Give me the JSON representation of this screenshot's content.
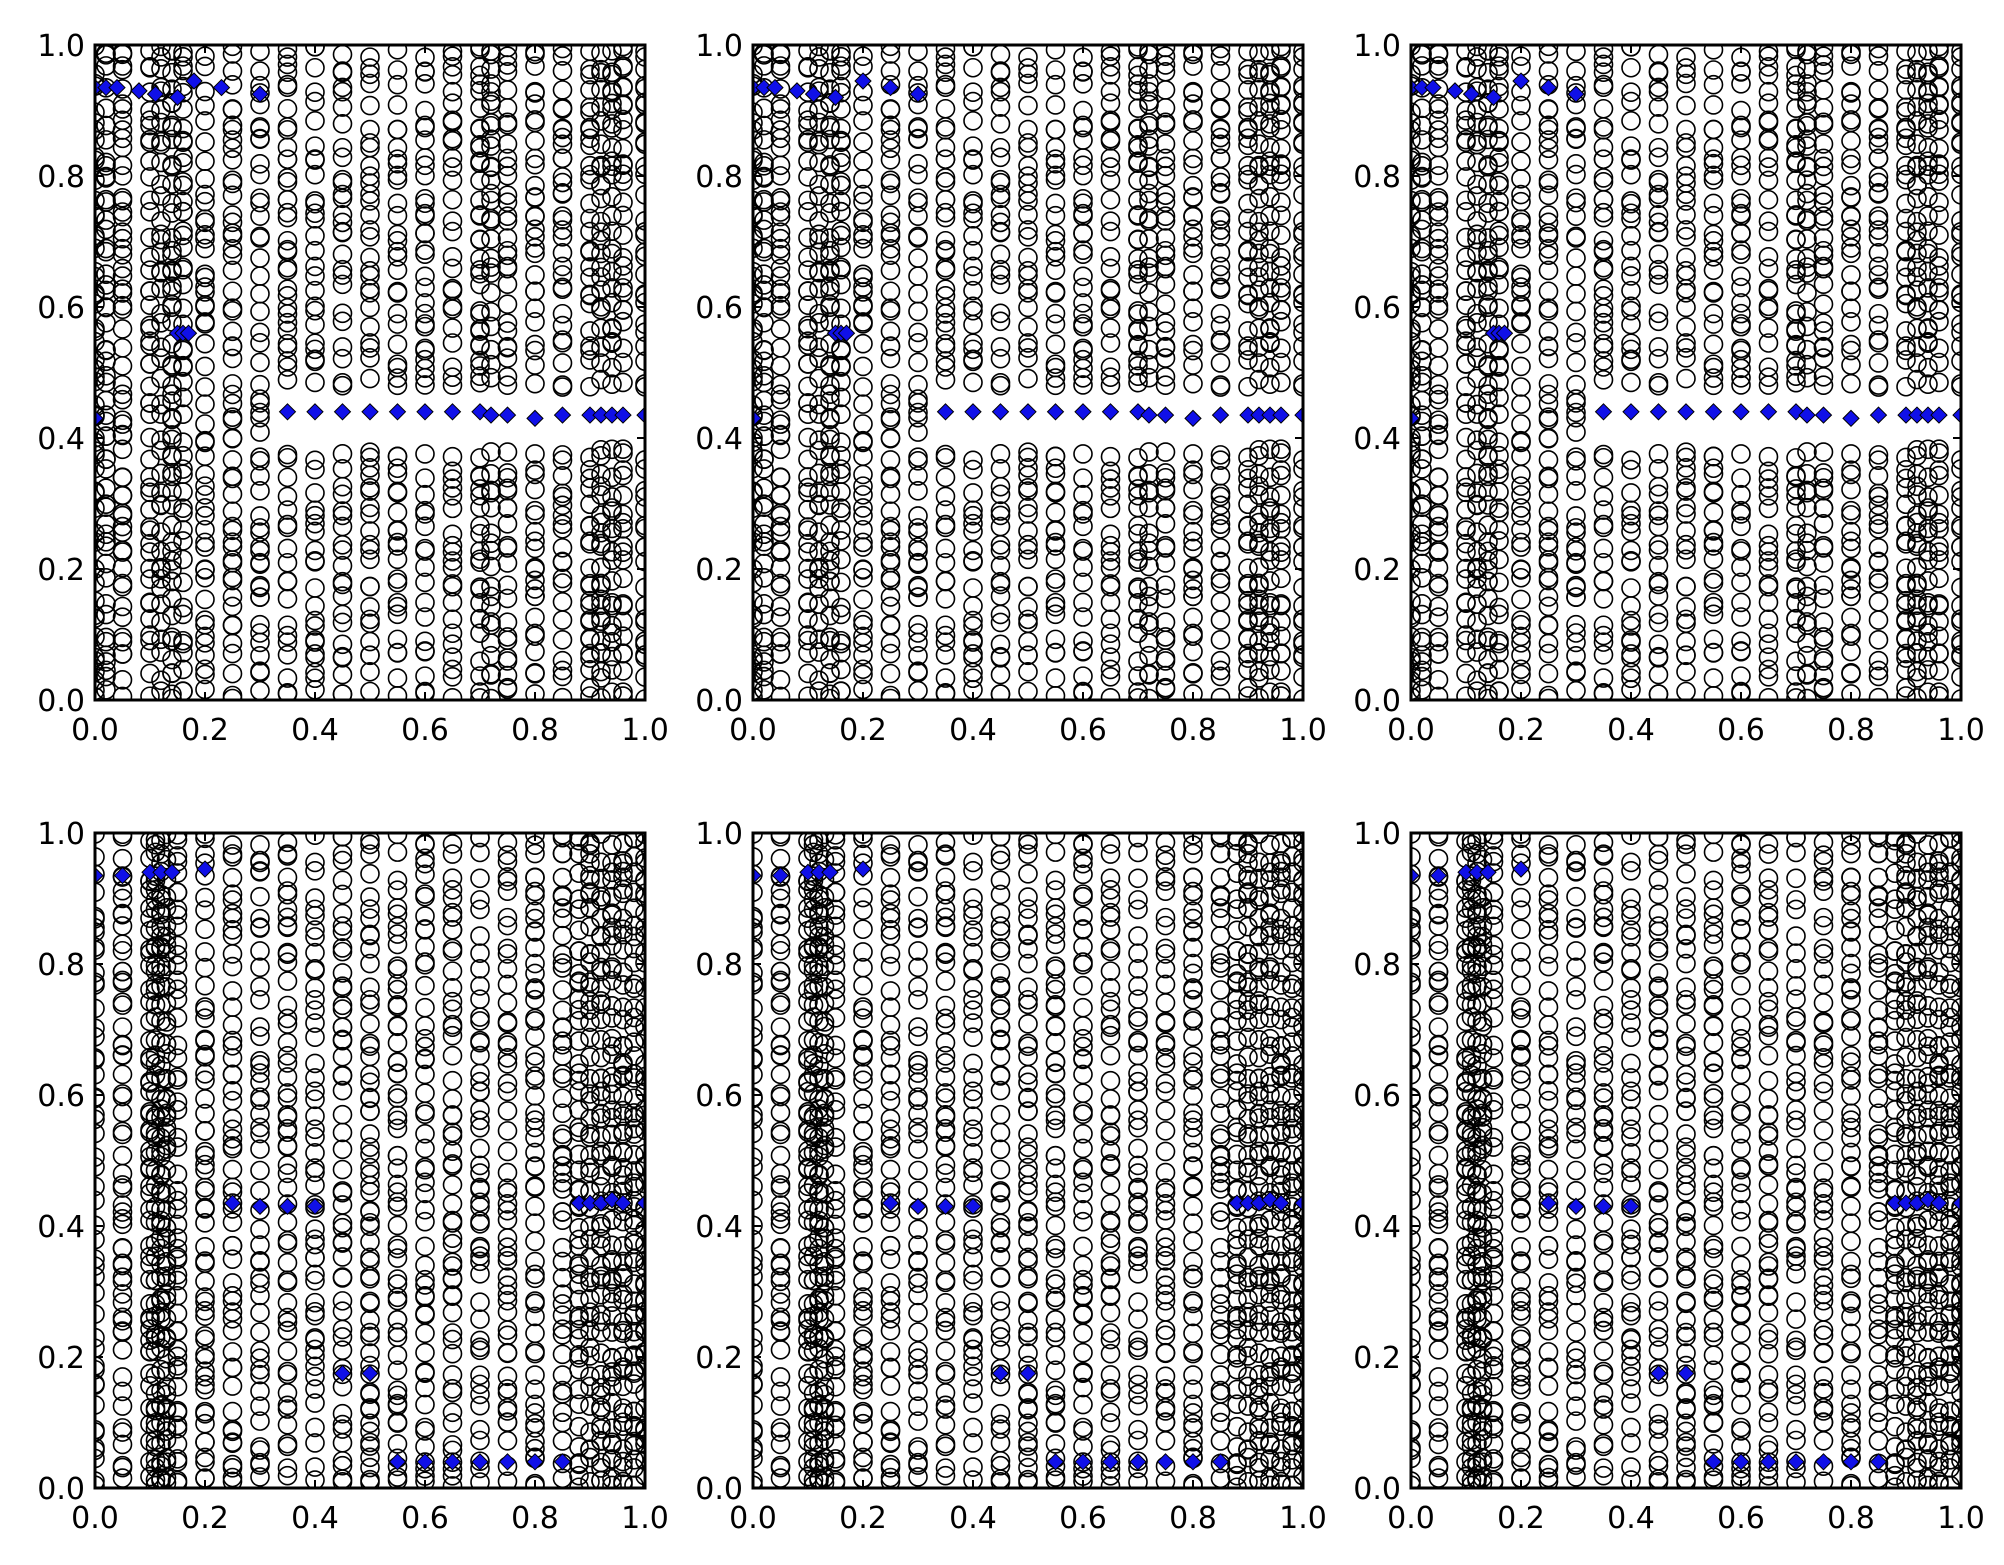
{
  "figure": {
    "panel_count": 6,
    "grid": "2x3"
  },
  "chart_data": [
    {
      "type": "scatter",
      "panel": "top-left",
      "title": "",
      "xlabel": "",
      "ylabel": "",
      "xlim": [
        0,
        1
      ],
      "ylim": [
        0,
        1
      ],
      "xticks": [
        "0.0",
        "0.2",
        "0.4",
        "0.6",
        "0.8",
        "1.0"
      ],
      "yticks": [
        "0.0",
        "0.2",
        "0.4",
        "0.6",
        "0.8",
        "1.0"
      ],
      "grid": false,
      "series": [
        {
          "marker": "open-circle",
          "color": "#000000",
          "description_x_columns": [
            0.0,
            0.02,
            0.05,
            0.1,
            0.12,
            0.14,
            0.16,
            0.2,
            0.25,
            0.3,
            0.35,
            0.4,
            0.45,
            0.5,
            0.55,
            0.6,
            0.65,
            0.7,
            0.72,
            0.75,
            0.8,
            0.85,
            0.9,
            0.92,
            0.94,
            0.96,
            1.0
          ],
          "description_y_rows": [
            0.01,
            0.08,
            0.1,
            0.12,
            0.16,
            0.2,
            0.22,
            0.24,
            0.28,
            0.3,
            0.32,
            0.35,
            0.38,
            0.45,
            0.48,
            0.5,
            0.52,
            0.6,
            0.62,
            0.64,
            0.68,
            0.7,
            0.72,
            0.76,
            0.8,
            0.82,
            0.86,
            0.88,
            0.95,
            0.99
          ]
        },
        {
          "marker": "diamond",
          "color": "#1010e8",
          "x": [
            0.0,
            0.02,
            0.04,
            0.08,
            0.11,
            0.15,
            0.18,
            0.23,
            0.3,
            0.15,
            0.16,
            0.17,
            0.0,
            0.35,
            0.4,
            0.45,
            0.5,
            0.55,
            0.6,
            0.65,
            0.7,
            0.72,
            0.75,
            0.8,
            0.85,
            0.9,
            0.92,
            0.94,
            0.96,
            1.0
          ],
          "y": [
            0.935,
            0.935,
            0.935,
            0.93,
            0.925,
            0.92,
            0.945,
            0.935,
            0.925,
            0.56,
            0.56,
            0.56,
            0.43,
            0.44,
            0.44,
            0.44,
            0.44,
            0.44,
            0.44,
            0.44,
            0.44,
            0.435,
            0.435,
            0.43,
            0.435,
            0.435,
            0.435,
            0.435,
            0.435,
            0.435
          ]
        }
      ]
    },
    {
      "type": "scatter",
      "panel": "top-middle",
      "title": "",
      "xlabel": "",
      "ylabel": "",
      "xlim": [
        0,
        1
      ],
      "ylim": [
        0,
        1
      ],
      "xticks": [
        "0.0",
        "0.2",
        "0.4",
        "0.6",
        "0.8",
        "1.0"
      ],
      "yticks": [
        "0.0",
        "0.2",
        "0.4",
        "0.6",
        "0.8",
        "1.0"
      ],
      "grid": false,
      "series": [
        {
          "marker": "open-circle",
          "color": "#000000"
        },
        {
          "marker": "diamond",
          "color": "#1010e8",
          "x": [
            0.0,
            0.02,
            0.04,
            0.08,
            0.11,
            0.15,
            0.2,
            0.25,
            0.3,
            0.15,
            0.16,
            0.17,
            0.0,
            0.35,
            0.4,
            0.45,
            0.5,
            0.55,
            0.6,
            0.65,
            0.7,
            0.72,
            0.75,
            0.8,
            0.85,
            0.9,
            0.92,
            0.94,
            0.96,
            1.0
          ],
          "y": [
            0.935,
            0.935,
            0.935,
            0.93,
            0.925,
            0.92,
            0.945,
            0.935,
            0.925,
            0.56,
            0.56,
            0.56,
            0.43,
            0.44,
            0.44,
            0.44,
            0.44,
            0.44,
            0.44,
            0.44,
            0.44,
            0.435,
            0.435,
            0.43,
            0.435,
            0.435,
            0.435,
            0.435,
            0.435,
            0.435
          ]
        }
      ]
    },
    {
      "type": "scatter",
      "panel": "top-right",
      "title": "",
      "xlabel": "",
      "ylabel": "",
      "xlim": [
        0,
        1
      ],
      "ylim": [
        0,
        1
      ],
      "xticks": [
        "0.0",
        "0.2",
        "0.4",
        "0.6",
        "0.8",
        "1.0"
      ],
      "yticks": [
        "0.0",
        "0.2",
        "0.4",
        "0.6",
        "0.8",
        "1.0"
      ],
      "grid": false,
      "series": [
        {
          "marker": "open-circle",
          "color": "#000000"
        },
        {
          "marker": "diamond",
          "color": "#1010e8",
          "x": [
            0.0,
            0.02,
            0.04,
            0.08,
            0.11,
            0.15,
            0.2,
            0.25,
            0.3,
            0.15,
            0.16,
            0.17,
            0.0,
            0.35,
            0.4,
            0.45,
            0.5,
            0.55,
            0.6,
            0.65,
            0.7,
            0.72,
            0.75,
            0.8,
            0.85,
            0.9,
            0.92,
            0.94,
            0.96,
            1.0
          ],
          "y": [
            0.935,
            0.935,
            0.935,
            0.93,
            0.925,
            0.92,
            0.945,
            0.935,
            0.925,
            0.56,
            0.56,
            0.56,
            0.43,
            0.44,
            0.44,
            0.44,
            0.44,
            0.44,
            0.44,
            0.44,
            0.44,
            0.435,
            0.435,
            0.43,
            0.435,
            0.435,
            0.435,
            0.435,
            0.435,
            0.435
          ]
        }
      ]
    },
    {
      "type": "scatter",
      "panel": "bottom-left",
      "title": "",
      "xlabel": "",
      "ylabel": "",
      "xlim": [
        0,
        1
      ],
      "ylim": [
        0,
        1
      ],
      "xticks": [
        "0.0",
        "0.2",
        "0.4",
        "0.6",
        "0.8",
        "1.0"
      ],
      "yticks": [
        "0.0",
        "0.2",
        "0.4",
        "0.6",
        "0.8",
        "1.0"
      ],
      "grid": false,
      "series": [
        {
          "marker": "open-circle",
          "color": "#000000"
        },
        {
          "marker": "diamond",
          "color": "#1010e8",
          "x": [
            0.0,
            0.05,
            0.1,
            0.12,
            0.14,
            0.2,
            0.25,
            0.3,
            0.35,
            0.4,
            0.45,
            0.5,
            0.55,
            0.6,
            0.65,
            0.7,
            0.75,
            0.8,
            0.85,
            0.88,
            0.9,
            0.92,
            0.94,
            0.96,
            1.0
          ],
          "y": [
            0.935,
            0.935,
            0.94,
            0.94,
            0.94,
            0.945,
            0.435,
            0.43,
            0.43,
            0.43,
            0.175,
            0.175,
            0.04,
            0.04,
            0.04,
            0.04,
            0.04,
            0.04,
            0.04,
            0.435,
            0.435,
            0.435,
            0.44,
            0.435,
            0.435
          ]
        }
      ]
    },
    {
      "type": "scatter",
      "panel": "bottom-middle",
      "title": "",
      "xlabel": "",
      "ylabel": "",
      "xlim": [
        0,
        1
      ],
      "ylim": [
        0,
        1
      ],
      "xticks": [
        "0.0",
        "0.2",
        "0.4",
        "0.6",
        "0.8",
        "1.0"
      ],
      "yticks": [
        "0.0",
        "0.2",
        "0.4",
        "0.6",
        "0.8",
        "1.0"
      ],
      "grid": false,
      "series": [
        {
          "marker": "open-circle",
          "color": "#000000"
        },
        {
          "marker": "diamond",
          "color": "#1010e8",
          "x": [
            0.0,
            0.05,
            0.1,
            0.12,
            0.14,
            0.2,
            0.25,
            0.3,
            0.35,
            0.4,
            0.45,
            0.5,
            0.55,
            0.6,
            0.65,
            0.7,
            0.75,
            0.8,
            0.85,
            0.88,
            0.9,
            0.92,
            0.94,
            0.96,
            1.0
          ],
          "y": [
            0.935,
            0.935,
            0.94,
            0.94,
            0.94,
            0.945,
            0.435,
            0.43,
            0.43,
            0.43,
            0.175,
            0.175,
            0.04,
            0.04,
            0.04,
            0.04,
            0.04,
            0.04,
            0.04,
            0.435,
            0.435,
            0.435,
            0.44,
            0.435,
            0.435
          ]
        }
      ]
    },
    {
      "type": "scatter",
      "panel": "bottom-right",
      "title": "",
      "xlabel": "",
      "ylabel": "",
      "xlim": [
        0,
        1
      ],
      "ylim": [
        0,
        1
      ],
      "xticks": [
        "0.0",
        "0.2",
        "0.4",
        "0.6",
        "0.8",
        "1.0"
      ],
      "yticks": [
        "0.0",
        "0.2",
        "0.4",
        "0.6",
        "0.8",
        "1.0"
      ],
      "grid": false,
      "series": [
        {
          "marker": "open-circle",
          "color": "#000000"
        },
        {
          "marker": "diamond",
          "color": "#1010e8",
          "x": [
            0.0,
            0.05,
            0.1,
            0.12,
            0.14,
            0.2,
            0.25,
            0.3,
            0.35,
            0.4,
            0.45,
            0.5,
            0.55,
            0.6,
            0.65,
            0.7,
            0.75,
            0.8,
            0.85,
            0.88,
            0.9,
            0.92,
            0.94,
            0.96,
            1.0
          ],
          "y": [
            0.935,
            0.935,
            0.94,
            0.94,
            0.94,
            0.945,
            0.435,
            0.43,
            0.43,
            0.43,
            0.175,
            0.175,
            0.04,
            0.04,
            0.04,
            0.04,
            0.04,
            0.04,
            0.04,
            0.435,
            0.435,
            0.435,
            0.44,
            0.435,
            0.435
          ]
        }
      ]
    }
  ]
}
